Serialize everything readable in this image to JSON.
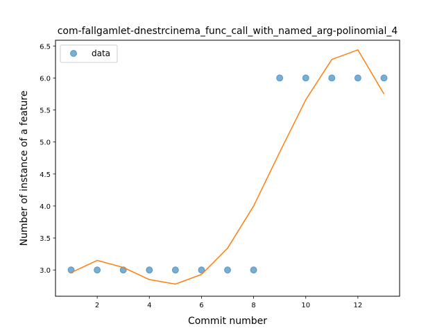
{
  "chart_data": {
    "type": "scatter",
    "title": "com-fallgamlet-dnestrcinema_func_call_with_named_arg-polinomial_4",
    "xlabel": "Commit number",
    "ylabel": "Number of instance of a feature",
    "xlim": [
      0.4,
      13.6
    ],
    "ylim": [
      2.59,
      6.59
    ],
    "xticks": [
      2,
      4,
      6,
      8,
      10,
      12
    ],
    "yticks": [
      3.0,
      3.5,
      4.0,
      4.5,
      5.0,
      5.5,
      6.0,
      6.5
    ],
    "xtick_labels": [
      "2",
      "4",
      "6",
      "8",
      "10",
      "12"
    ],
    "ytick_labels": [
      "3.0",
      "3.5",
      "4.0",
      "4.5",
      "5.0",
      "5.5",
      "6.0",
      "6.5"
    ],
    "legend": {
      "placement": "top-left",
      "entries": [
        "data"
      ]
    },
    "grid": false,
    "series": [
      {
        "name": "data",
        "kind": "scatter",
        "color": "#1f77b4",
        "x": [
          1,
          2,
          3,
          4,
          5,
          6,
          7,
          8,
          9,
          10,
          11,
          12,
          13
        ],
        "y": [
          3,
          3,
          3,
          3,
          3,
          3,
          3,
          3,
          6,
          6,
          6,
          6,
          6
        ]
      },
      {
        "kind": "line",
        "color": "#ff7f0e",
        "x": [
          1,
          2,
          3,
          4,
          5,
          6,
          7,
          8,
          9,
          10,
          11,
          12,
          13
        ],
        "y": [
          2.96,
          3.15,
          3.04,
          2.85,
          2.78,
          2.93,
          3.34,
          4.0,
          4.84,
          5.66,
          6.29,
          6.44,
          5.75
        ]
      }
    ]
  }
}
